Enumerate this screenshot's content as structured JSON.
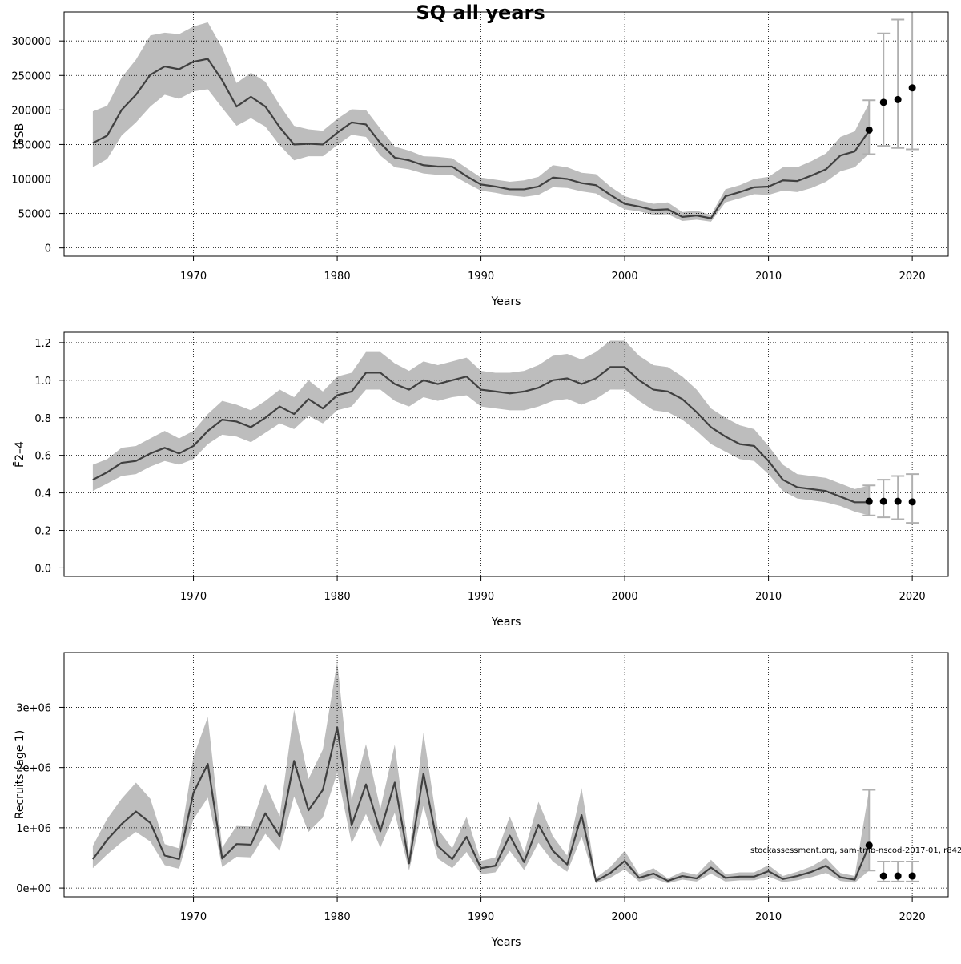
{
  "page": {
    "title": "SQ all years",
    "credit": "stockassessment.org, sam-tmb-nscod-2017-01, r8427"
  },
  "colors": {
    "band": "#bdbdbd",
    "line": "#404040",
    "errorbar": "#b0b0b0",
    "point": "#000000",
    "grid": "#000000",
    "frame": "#000000"
  },
  "chart_data": [
    {
      "type": "area",
      "title": "",
      "xlabel": "Years",
      "ylabel": "SSB",
      "xlim": [
        1961,
        2022.5
      ],
      "ylim": [
        -12000,
        342000
      ],
      "grid": true,
      "xticks": [
        1970,
        1980,
        1990,
        2000,
        2010,
        2020
      ],
      "xtick_labels": [
        "1970",
        "1980",
        "1990",
        "2000",
        "2010",
        "2020"
      ],
      "yticks": [
        0,
        50000,
        100000,
        150000,
        200000,
        250000,
        300000
      ],
      "ytick_labels": [
        "0",
        "50000",
        "100000",
        "150000",
        "200000",
        "250000",
        "300000"
      ],
      "estimate": {
        "x": [
          1963,
          1964,
          1965,
          1966,
          1967,
          1968,
          1969,
          1970,
          1971,
          1972,
          1973,
          1974,
          1975,
          1976,
          1977,
          1978,
          1979,
          1980,
          1981,
          1982,
          1983,
          1984,
          1985,
          1986,
          1987,
          1988,
          1989,
          1990,
          1991,
          1992,
          1993,
          1994,
          1995,
          1996,
          1997,
          1998,
          1999,
          2000,
          2001,
          2002,
          2003,
          2004,
          2005,
          2006,
          2007,
          2008,
          2009,
          2010,
          2011,
          2012,
          2013,
          2014,
          2015,
          2016,
          2017
        ],
        "y": [
          152000,
          163000,
          200000,
          222000,
          251000,
          263000,
          259000,
          270000,
          274000,
          243000,
          205000,
          219000,
          205000,
          175000,
          150000,
          151000,
          150000,
          167000,
          182000,
          179000,
          152000,
          131000,
          127000,
          120000,
          118000,
          118000,
          104000,
          92000,
          89000,
          85000,
          85000,
          89000,
          102000,
          100000,
          94000,
          91000,
          77000,
          64000,
          60000,
          55000,
          56000,
          45000,
          47000,
          43000,
          75000,
          81000,
          88000,
          89000,
          98000,
          97000,
          105000,
          114000,
          134000,
          140000,
          170000
        ],
        "lower": [
          117000,
          129000,
          163000,
          182000,
          205000,
          222000,
          216000,
          227000,
          230000,
          203000,
          177000,
          188000,
          176000,
          149000,
          127000,
          133000,
          133000,
          149000,
          164000,
          161000,
          134000,
          117000,
          114000,
          108000,
          106000,
          106000,
          94000,
          83000,
          80000,
          76000,
          74000,
          77000,
          88000,
          87000,
          82000,
          79000,
          67000,
          56000,
          53000,
          48000,
          49000,
          39000,
          41000,
          38000,
          66000,
          72000,
          78000,
          77000,
          83000,
          81000,
          87000,
          96000,
          111000,
          117000,
          137000
        ],
        "upper": [
          198000,
          206000,
          247000,
          273000,
          308000,
          312000,
          310000,
          321000,
          327000,
          290000,
          239000,
          254000,
          241000,
          207000,
          177000,
          172000,
          170000,
          187000,
          201000,
          200000,
          173000,
          147000,
          141000,
          133000,
          132000,
          130000,
          116000,
          102000,
          99000,
          96000,
          98000,
          103000,
          120000,
          117000,
          109000,
          107000,
          89000,
          75000,
          69000,
          64000,
          66000,
          52000,
          54000,
          48000,
          85000,
          91000,
          100000,
          103000,
          117000,
          117000,
          126000,
          137000,
          161000,
          169000,
          210000
        ]
      },
      "forecast": {
        "x": [
          2017,
          2018,
          2019,
          2020
        ],
        "y": [
          171000,
          211000,
          215000,
          232000
        ],
        "lower": [
          136000,
          148000,
          145000,
          143000
        ],
        "upper": [
          214000,
          311000,
          331000,
          345000
        ]
      }
    },
    {
      "type": "area",
      "title": "",
      "xlabel": "Years",
      "ylabel": "F̄2–4",
      "xlim": [
        1961,
        2022.5
      ],
      "ylim": [
        -0.045,
        1.255
      ],
      "grid": true,
      "xticks": [
        1970,
        1980,
        1990,
        2000,
        2010,
        2020
      ],
      "xtick_labels": [
        "1970",
        "1980",
        "1990",
        "2000",
        "2010",
        "2020"
      ],
      "yticks": [
        0,
        0.2,
        0.4,
        0.6,
        0.8,
        1.0,
        1.2
      ],
      "ytick_labels": [
        "0.0",
        "0.2",
        "0.4",
        "0.6",
        "0.8",
        "1.0",
        "1.2"
      ],
      "estimate": {
        "x": [
          1963,
          1964,
          1965,
          1966,
          1967,
          1968,
          1969,
          1970,
          1971,
          1972,
          1973,
          1974,
          1975,
          1976,
          1977,
          1978,
          1979,
          1980,
          1981,
          1982,
          1983,
          1984,
          1985,
          1986,
          1987,
          1988,
          1989,
          1990,
          1991,
          1992,
          1993,
          1994,
          1995,
          1996,
          1997,
          1998,
          1999,
          2000,
          2001,
          2002,
          2003,
          2004,
          2005,
          2006,
          2007,
          2008,
          2009,
          2010,
          2011,
          2012,
          2013,
          2014,
          2015,
          2016,
          2017
        ],
        "y": [
          0.47,
          0.51,
          0.56,
          0.57,
          0.61,
          0.64,
          0.61,
          0.65,
          0.73,
          0.79,
          0.78,
          0.75,
          0.8,
          0.86,
          0.82,
          0.9,
          0.85,
          0.92,
          0.94,
          1.04,
          1.04,
          0.98,
          0.95,
          1.0,
          0.98,
          1.0,
          1.02,
          0.95,
          0.94,
          0.93,
          0.94,
          0.96,
          1.0,
          1.01,
          0.98,
          1.01,
          1.07,
          1.07,
          1.0,
          0.95,
          0.94,
          0.9,
          0.83,
          0.75,
          0.7,
          0.66,
          0.65,
          0.57,
          0.47,
          0.43,
          0.42,
          0.41,
          0.38,
          0.35,
          0.35
        ],
        "lower": [
          0.41,
          0.45,
          0.49,
          0.5,
          0.54,
          0.57,
          0.55,
          0.58,
          0.66,
          0.71,
          0.7,
          0.67,
          0.72,
          0.77,
          0.74,
          0.81,
          0.77,
          0.84,
          0.86,
          0.95,
          0.95,
          0.89,
          0.86,
          0.91,
          0.89,
          0.91,
          0.92,
          0.86,
          0.85,
          0.84,
          0.84,
          0.86,
          0.89,
          0.9,
          0.87,
          0.9,
          0.95,
          0.95,
          0.89,
          0.84,
          0.83,
          0.79,
          0.73,
          0.66,
          0.62,
          0.58,
          0.57,
          0.5,
          0.41,
          0.37,
          0.36,
          0.35,
          0.33,
          0.3,
          0.28
        ],
        "upper": [
          0.55,
          0.58,
          0.64,
          0.65,
          0.69,
          0.73,
          0.69,
          0.73,
          0.82,
          0.89,
          0.87,
          0.84,
          0.89,
          0.95,
          0.91,
          1.0,
          0.94,
          1.02,
          1.04,
          1.15,
          1.15,
          1.09,
          1.05,
          1.1,
          1.08,
          1.1,
          1.12,
          1.05,
          1.04,
          1.04,
          1.05,
          1.08,
          1.13,
          1.14,
          1.11,
          1.15,
          1.21,
          1.21,
          1.13,
          1.08,
          1.07,
          1.02,
          0.95,
          0.85,
          0.8,
          0.76,
          0.74,
          0.65,
          0.55,
          0.5,
          0.49,
          0.48,
          0.45,
          0.42,
          0.44
        ]
      },
      "forecast": {
        "x": [
          2017,
          2018,
          2019,
          2020
        ],
        "y": [
          0.355,
          0.355,
          0.355,
          0.352
        ],
        "lower": [
          0.28,
          0.27,
          0.26,
          0.24
        ],
        "upper": [
          0.44,
          0.47,
          0.49,
          0.5
        ]
      }
    },
    {
      "type": "area",
      "title": "",
      "xlabel": "Years",
      "ylabel": "Recruits (age 1)",
      "xlim": [
        1961,
        2022.5
      ],
      "ylim": [
        -145000,
        3910000
      ],
      "grid": true,
      "xticks": [
        1970,
        1980,
        1990,
        2000,
        2010,
        2020
      ],
      "xtick_labels": [
        "1970",
        "1980",
        "1990",
        "2000",
        "2010",
        "2020"
      ],
      "yticks": [
        0,
        1000000,
        2000000,
        3000000
      ],
      "ytick_labels": [
        "0e+00",
        "1e+06",
        "2e+06",
        "3e+06"
      ],
      "estimate": {
        "x": [
          1963,
          1964,
          1965,
          1966,
          1967,
          1968,
          1969,
          1970,
          1971,
          1972,
          1973,
          1974,
          1975,
          1976,
          1977,
          1978,
          1979,
          1980,
          1981,
          1982,
          1983,
          1984,
          1985,
          1986,
          1987,
          1988,
          1989,
          1990,
          1991,
          1992,
          1993,
          1994,
          1995,
          1996,
          1997,
          1998,
          1999,
          2000,
          2001,
          2002,
          2003,
          2004,
          2005,
          2006,
          2007,
          2008,
          2009,
          2010,
          2011,
          2012,
          2013,
          2014,
          2015,
          2016,
          2017
        ],
        "y": [
          480000,
          800000,
          1060000,
          1270000,
          1080000,
          540000,
          480000,
          1580000,
          2060000,
          490000,
          730000,
          720000,
          1240000,
          860000,
          2110000,
          1290000,
          1630000,
          2670000,
          1040000,
          1720000,
          940000,
          1750000,
          410000,
          1900000,
          700000,
          480000,
          850000,
          330000,
          370000,
          870000,
          430000,
          1050000,
          620000,
          390000,
          1210000,
          120000,
          250000,
          450000,
          170000,
          240000,
          120000,
          200000,
          160000,
          340000,
          170000,
          190000,
          190000,
          280000,
          150000,
          200000,
          270000,
          370000,
          180000,
          140000,
          710000
        ],
        "lower": [
          330000,
          560000,
          760000,
          930000,
          770000,
          380000,
          320000,
          1140000,
          1500000,
          350000,
          520000,
          510000,
          900000,
          620000,
          1520000,
          930000,
          1170000,
          1910000,
          740000,
          1230000,
          670000,
          1250000,
          290000,
          1360000,
          490000,
          330000,
          600000,
          230000,
          260000,
          620000,
          300000,
          750000,
          440000,
          270000,
          850000,
          80000,
          170000,
          310000,
          110000,
          160000,
          80000,
          140000,
          110000,
          240000,
          110000,
          130000,
          130000,
          190000,
          100000,
          130000,
          180000,
          250000,
          120000,
          90000,
          290000
        ],
        "upper": [
          700000,
          1150000,
          1480000,
          1750000,
          1480000,
          730000,
          660000,
          2180000,
          2840000,
          670000,
          1030000,
          1020000,
          1730000,
          1190000,
          2960000,
          1810000,
          2300000,
          3760000,
          1460000,
          2390000,
          1310000,
          2380000,
          570000,
          2580000,
          980000,
          660000,
          1180000,
          450000,
          510000,
          1190000,
          590000,
          1430000,
          860000,
          540000,
          1660000,
          170000,
          350000,
          620000,
          230000,
          330000,
          160000,
          270000,
          220000,
          470000,
          230000,
          260000,
          260000,
          380000,
          200000,
          270000,
          360000,
          500000,
          250000,
          200000,
          1630000
        ]
      },
      "forecast": {
        "x": [
          2017,
          2018,
          2019,
          2020
        ],
        "y": [
          710000,
          200000,
          200000,
          200000
        ],
        "lower": [
          290000,
          110000,
          110000,
          110000
        ],
        "upper": [
          1630000,
          440000,
          440000,
          440000
        ]
      }
    }
  ]
}
